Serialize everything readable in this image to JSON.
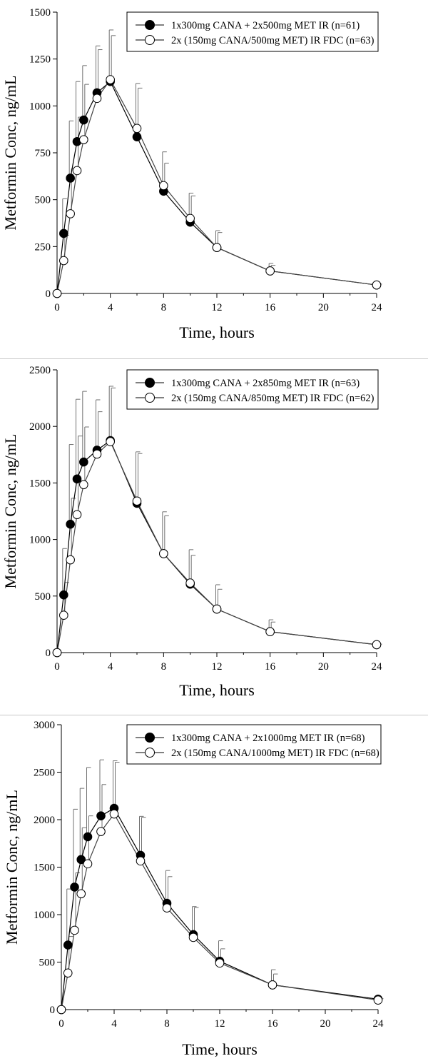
{
  "chart_data": [
    {
      "type": "line",
      "xlabel": "Time, hours",
      "ylabel": "Metformin Conc, ng/mL",
      "xlim": [
        0,
        24
      ],
      "ylim": [
        0,
        1500
      ],
      "xticks": [
        0,
        4,
        8,
        12,
        16,
        20,
        24
      ],
      "yticks": [
        0,
        250,
        500,
        750,
        1000,
        1250,
        1500
      ],
      "legend_position": "top-right",
      "grid": false,
      "x": [
        0,
        0.5,
        1,
        1.5,
        2,
        3,
        4,
        6,
        8,
        10,
        12,
        16,
        24
      ],
      "series": [
        {
          "name": "1x300mg CANA + 2x500mg MET IR (n=61)",
          "marker": "filled-circle",
          "values": [
            0,
            320,
            615,
            810,
            925,
            1070,
            1130,
            835,
            545,
            380,
            245,
            120,
            45
          ],
          "upper": [
            0,
            505,
            920,
            1130,
            1215,
            1320,
            1405,
            1120,
            755,
            535,
            335,
            160,
            55
          ]
        },
        {
          "name": "2x (150mg CANA/500mg MET) IR FDC (n=63)",
          "marker": "open-circle",
          "values": [
            0,
            175,
            425,
            655,
            820,
            1040,
            1140,
            880,
            575,
            400,
            245,
            120,
            45
          ],
          "upper": [
            0,
            310,
            665,
            940,
            1115,
            1300,
            1375,
            1095,
            695,
            520,
            325,
            150,
            50
          ]
        }
      ]
    },
    {
      "type": "line",
      "xlabel": "Time, hours",
      "ylabel": "Metformin Conc, ng/mL",
      "xlim": [
        0,
        24
      ],
      "ylim": [
        0,
        2500
      ],
      "xticks": [
        0,
        4,
        8,
        12,
        16,
        20,
        24
      ],
      "yticks": [
        0,
        500,
        1000,
        1500,
        2000,
        2500
      ],
      "legend_position": "top-right",
      "grid": false,
      "x": [
        0,
        0.5,
        1,
        1.5,
        2,
        3,
        4,
        6,
        8,
        10,
        12,
        16,
        24
      ],
      "series": [
        {
          "name": "1x300mg CANA + 2x850mg MET IR (n=63)",
          "marker": "filled-circle",
          "values": [
            0,
            510,
            1135,
            1535,
            1685,
            1790,
            1875,
            1320,
            875,
            605,
            385,
            185,
            70
          ],
          "upper": [
            0,
            920,
            1840,
            2240,
            2310,
            2235,
            2355,
            1775,
            1245,
            910,
            600,
            290,
            80
          ]
        },
        {
          "name": "2x (150mg CANA/850mg MET) IR FDC (n=62)",
          "marker": "open-circle",
          "values": [
            0,
            330,
            820,
            1220,
            1485,
            1755,
            1865,
            1340,
            875,
            615,
            385,
            185,
            70
          ],
          "upper": [
            0,
            620,
            1365,
            1915,
            1995,
            2130,
            2340,
            1760,
            1210,
            860,
            560,
            270,
            75
          ]
        }
      ]
    },
    {
      "type": "line",
      "xlabel": "Time, hours",
      "ylabel": "Metformin Conc, ng/mL",
      "xlim": [
        0,
        24
      ],
      "ylim": [
        0,
        3000
      ],
      "xticks": [
        0,
        4,
        8,
        12,
        16,
        20,
        24
      ],
      "yticks": [
        0,
        500,
        1000,
        1500,
        2000,
        2500,
        3000
      ],
      "legend_position": "top-right",
      "grid": false,
      "x": [
        0,
        0.5,
        1,
        1.5,
        2,
        3,
        4,
        6,
        8,
        10,
        12,
        16,
        24
      ],
      "series": [
        {
          "name": "1x300mg CANA + 2x1000mg MET IR (n=68)",
          "marker": "filled-circle",
          "values": [
            0,
            680,
            1290,
            1580,
            1820,
            2040,
            2120,
            1625,
            1120,
            790,
            510,
            260,
            110
          ],
          "upper": [
            0,
            1270,
            2110,
            2330,
            2550,
            2630,
            2620,
            2035,
            1465,
            1085,
            725,
            420,
            135
          ]
        },
        {
          "name": "2x (150mg CANA/1000mg MET) IR FDC (n=68)",
          "marker": "open-circle",
          "values": [
            0,
            385,
            835,
            1220,
            1535,
            1875,
            2060,
            1565,
            1070,
            760,
            490,
            260,
            100
          ],
          "upper": [
            0,
            770,
            1440,
            1915,
            2040,
            2370,
            2605,
            2025,
            1400,
            1075,
            640,
            375,
            115
          ]
        }
      ]
    }
  ]
}
